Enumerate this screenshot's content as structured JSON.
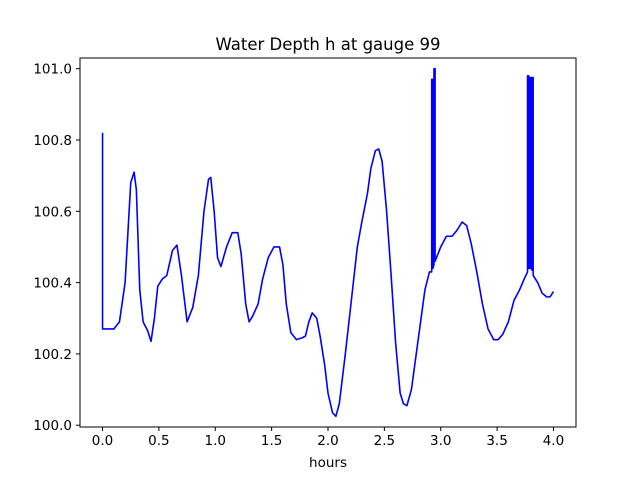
{
  "chart_data": {
    "type": "line",
    "title": "Water Depth h at gauge 99",
    "xlabel": "hours",
    "ylabel": "",
    "xlim": [
      -0.2,
      4.2
    ],
    "ylim": [
      99.995,
      101.03
    ],
    "xticks": [
      0.0,
      0.5,
      1.0,
      1.5,
      2.0,
      2.5,
      3.0,
      3.5,
      4.0
    ],
    "xtick_labels": [
      "0.0",
      "0.5",
      "1.0",
      "1.5",
      "2.0",
      "2.5",
      "3.0",
      "3.5",
      "4.0"
    ],
    "yticks": [
      100.0,
      100.2,
      100.4,
      100.6,
      100.8,
      101.0
    ],
    "ytick_labels": [
      "100.0",
      "100.2",
      "100.4",
      "100.6",
      "100.8",
      "101.0"
    ],
    "grid": false,
    "legend": "none",
    "series": [
      {
        "color": "#0000ff",
        "points": [
          [
            0.0,
            100.82
          ],
          [
            0.0,
            100.27
          ],
          [
            0.05,
            100.27
          ],
          [
            0.1,
            100.27
          ],
          [
            0.15,
            100.29
          ],
          [
            0.2,
            100.4
          ],
          [
            0.25,
            100.68
          ],
          [
            0.28,
            100.71
          ],
          [
            0.3,
            100.66
          ],
          [
            0.33,
            100.38
          ],
          [
            0.36,
            100.29
          ],
          [
            0.4,
            100.265
          ],
          [
            0.43,
            100.235
          ],
          [
            0.46,
            100.3
          ],
          [
            0.49,
            100.39
          ],
          [
            0.53,
            100.41
          ],
          [
            0.57,
            100.42
          ],
          [
            0.62,
            100.49
          ],
          [
            0.66,
            100.505
          ],
          [
            0.7,
            100.42
          ],
          [
            0.75,
            100.29
          ],
          [
            0.8,
            100.33
          ],
          [
            0.85,
            100.42
          ],
          [
            0.9,
            100.6
          ],
          [
            0.94,
            100.69
          ],
          [
            0.96,
            100.695
          ],
          [
            0.99,
            100.6
          ],
          [
            1.02,
            100.47
          ],
          [
            1.05,
            100.445
          ],
          [
            1.1,
            100.5
          ],
          [
            1.15,
            100.54
          ],
          [
            1.2,
            100.54
          ],
          [
            1.23,
            100.48
          ],
          [
            1.27,
            100.34
          ],
          [
            1.3,
            100.29
          ],
          [
            1.33,
            100.305
          ],
          [
            1.38,
            100.34
          ],
          [
            1.42,
            100.41
          ],
          [
            1.47,
            100.47
          ],
          [
            1.52,
            100.5
          ],
          [
            1.57,
            100.5
          ],
          [
            1.6,
            100.45
          ],
          [
            1.63,
            100.34
          ],
          [
            1.67,
            100.26
          ],
          [
            1.72,
            100.24
          ],
          [
            1.77,
            100.245
          ],
          [
            1.8,
            100.25
          ],
          [
            1.83,
            100.29
          ],
          [
            1.86,
            100.315
          ],
          [
            1.9,
            100.3
          ],
          [
            1.93,
            100.25
          ],
          [
            1.97,
            100.17
          ],
          [
            2.0,
            100.09
          ],
          [
            2.04,
            100.035
          ],
          [
            2.07,
            100.025
          ],
          [
            2.1,
            100.06
          ],
          [
            2.15,
            100.19
          ],
          [
            2.2,
            100.33
          ],
          [
            2.26,
            100.5
          ],
          [
            2.3,
            100.57
          ],
          [
            2.35,
            100.65
          ],
          [
            2.38,
            100.72
          ],
          [
            2.42,
            100.77
          ],
          [
            2.45,
            100.775
          ],
          [
            2.48,
            100.74
          ],
          [
            2.52,
            100.6
          ],
          [
            2.56,
            100.42
          ],
          [
            2.6,
            100.23
          ],
          [
            2.64,
            100.09
          ],
          [
            2.67,
            100.06
          ],
          [
            2.7,
            100.055
          ],
          [
            2.74,
            100.1
          ],
          [
            2.8,
            100.24
          ],
          [
            2.86,
            100.38
          ],
          [
            2.9,
            100.43
          ],
          [
            2.92,
            100.43
          ],
          [
            2.92,
            100.97
          ],
          [
            2.93,
            100.97
          ],
          [
            2.93,
            100.44
          ],
          [
            2.94,
            100.45
          ],
          [
            2.94,
            101.0
          ],
          [
            2.95,
            101.0
          ],
          [
            2.95,
            100.46
          ],
          [
            3.0,
            100.5
          ],
          [
            3.05,
            100.53
          ],
          [
            3.1,
            100.53
          ],
          [
            3.14,
            100.545
          ],
          [
            3.19,
            100.57
          ],
          [
            3.23,
            100.56
          ],
          [
            3.27,
            100.51
          ],
          [
            3.32,
            100.43
          ],
          [
            3.37,
            100.34
          ],
          [
            3.42,
            100.27
          ],
          [
            3.47,
            100.24
          ],
          [
            3.51,
            100.24
          ],
          [
            3.55,
            100.255
          ],
          [
            3.6,
            100.29
          ],
          [
            3.65,
            100.35
          ],
          [
            3.7,
            100.38
          ],
          [
            3.74,
            100.41
          ],
          [
            3.77,
            100.43
          ],
          [
            3.77,
            100.98
          ],
          [
            3.78,
            100.98
          ],
          [
            3.78,
            100.44
          ],
          [
            3.79,
            100.44
          ],
          [
            3.79,
            100.975
          ],
          [
            3.8,
            100.975
          ],
          [
            3.8,
            100.44
          ],
          [
            3.81,
            100.435
          ],
          [
            3.81,
            100.975
          ],
          [
            3.82,
            100.975
          ],
          [
            3.82,
            100.42
          ],
          [
            3.86,
            100.4
          ],
          [
            3.9,
            100.37
          ],
          [
            3.94,
            100.36
          ],
          [
            3.97,
            100.36
          ],
          [
            4.0,
            100.375
          ]
        ]
      }
    ]
  }
}
